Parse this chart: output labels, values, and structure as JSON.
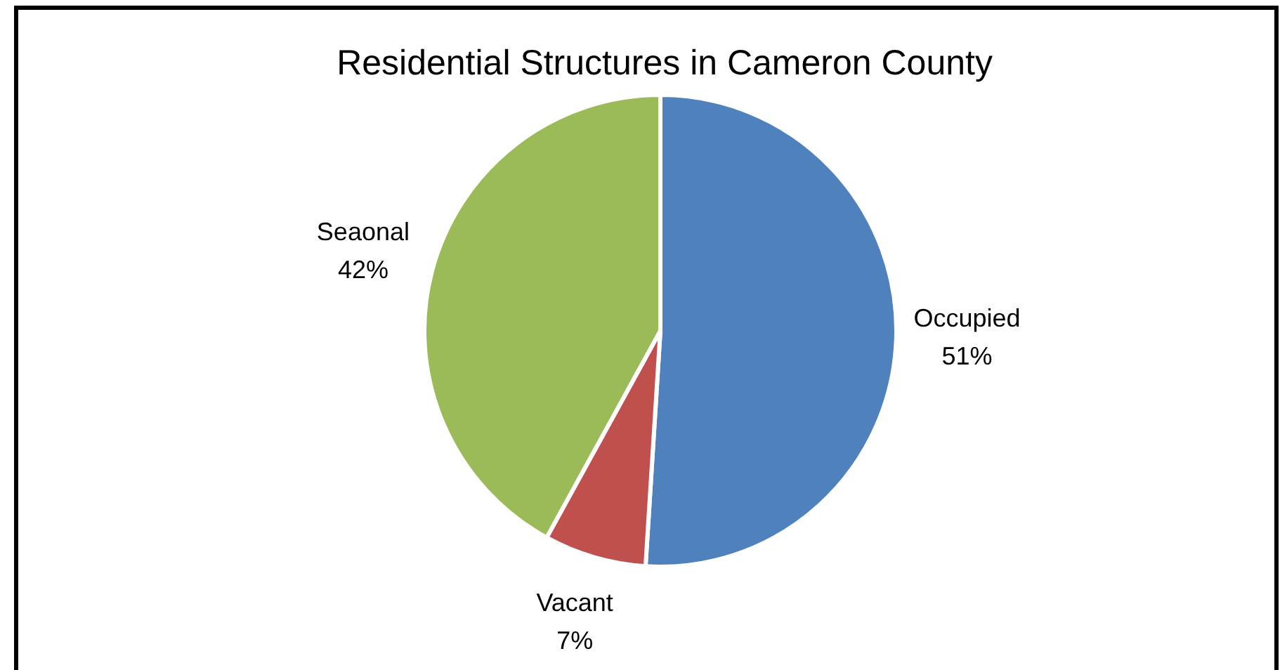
{
  "chart_data": {
    "type": "pie",
    "title": "Residential Structures in Cameron County",
    "categories": [
      "Occupied",
      "Vacant",
      "Seaonal"
    ],
    "values": [
      51,
      7,
      42
    ],
    "value_labels": [
      "51%",
      "7%",
      "42%"
    ],
    "colors": [
      "#4f81bd",
      "#c0504d",
      "#9bbb59"
    ],
    "legend": false
  }
}
